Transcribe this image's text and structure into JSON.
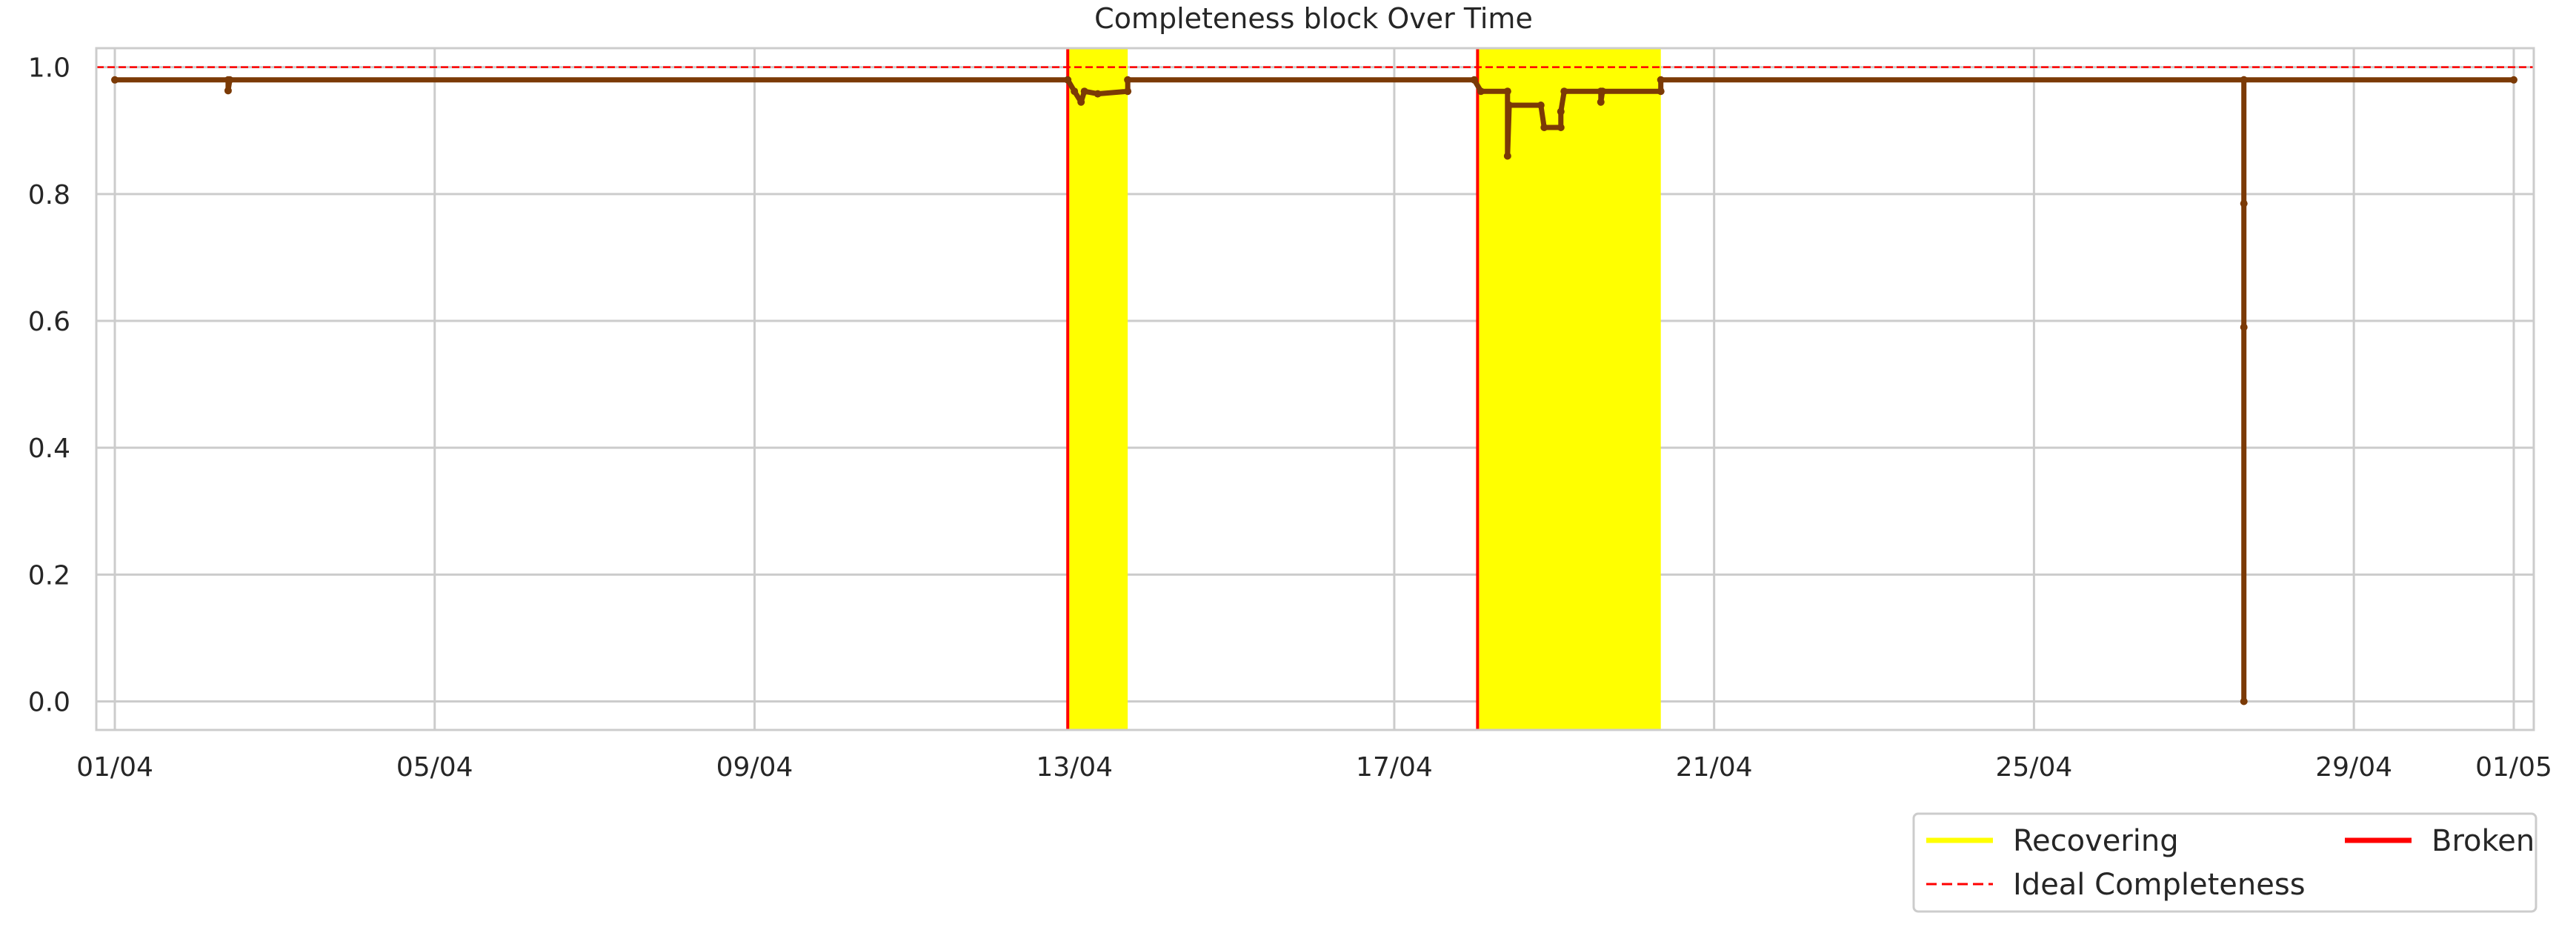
{
  "chart_data": {
    "type": "line",
    "title": "Completeness block Over Time",
    "xlabel": "",
    "ylabel": "",
    "x_range": [
      "2025-04-01",
      "2025-05-01"
    ],
    "ylim": [
      -0.045,
      1.03
    ],
    "x_ticks": [
      {
        "date": "2025-04-01",
        "label": "01/04"
      },
      {
        "date": "2025-04-05",
        "label": "05/04"
      },
      {
        "date": "2025-04-09",
        "label": "09/04"
      },
      {
        "date": "2025-04-13",
        "label": "13/04"
      },
      {
        "date": "2025-04-17",
        "label": "17/04"
      },
      {
        "date": "2025-04-21",
        "label": "21/04"
      },
      {
        "date": "2025-04-25",
        "label": "25/04"
      },
      {
        "date": "2025-04-29",
        "label": "29/04"
      },
      {
        "date": "2025-05-01",
        "label": "01/05"
      }
    ],
    "y_ticks": [
      {
        "value": 0.0,
        "label": "0.0"
      },
      {
        "value": 0.2,
        "label": "0.2"
      },
      {
        "value": 0.4,
        "label": "0.4"
      },
      {
        "value": 0.6,
        "label": "0.6"
      },
      {
        "value": 0.8,
        "label": "0.8"
      },
      {
        "value": 1.0,
        "label": "1.0"
      }
    ],
    "grid": true,
    "legend_placement": "lower-right, below plot",
    "ideal_completeness": 1.0,
    "recovering_spans": [
      {
        "start": "2025-04-12 22:00",
        "end": "2025-04-13 16:00"
      },
      {
        "start": "2025-04-18 01:00",
        "end": "2025-04-20 08:00"
      }
    ],
    "broken_events": [
      "2025-04-12 22:00",
      "2025-04-18 01:00"
    ],
    "series": [
      {
        "points": [
          [
            "2025-04-01 00:00",
            0.98
          ],
          [
            "2025-04-02 10:00",
            0.98
          ],
          [
            "2025-04-02 10:00",
            0.963
          ],
          [
            "2025-04-02 10:30",
            0.98
          ],
          [
            "2025-04-12 22:00",
            0.98
          ],
          [
            "2025-04-13 00:00",
            0.962
          ],
          [
            "2025-04-13 02:00",
            0.945
          ],
          [
            "2025-04-13 03:00",
            0.962
          ],
          [
            "2025-04-13 07:00",
            0.958
          ],
          [
            "2025-04-13 16:00",
            0.962
          ],
          [
            "2025-04-13 16:00",
            0.98
          ],
          [
            "2025-04-18 00:00",
            0.98
          ],
          [
            "2025-04-18 02:00",
            0.962
          ],
          [
            "2025-04-18 10:00",
            0.962
          ],
          [
            "2025-04-18 10:00",
            0.86
          ],
          [
            "2025-04-18 10:30",
            0.94
          ],
          [
            "2025-04-18 20:00",
            0.94
          ],
          [
            "2025-04-18 21:00",
            0.905
          ],
          [
            "2025-04-19 02:00",
            0.905
          ],
          [
            "2025-04-19 02:00",
            0.93
          ],
          [
            "2025-04-19 03:00",
            0.962
          ],
          [
            "2025-04-19 14:00",
            0.962
          ],
          [
            "2025-04-19 14:00",
            0.945
          ],
          [
            "2025-04-19 14:30",
            0.962
          ],
          [
            "2025-04-20 08:00",
            0.962
          ],
          [
            "2025-04-20 08:00",
            0.98
          ],
          [
            "2025-04-27 15:00",
            0.98
          ],
          [
            "2025-04-27 15:00",
            0.785
          ],
          [
            "2025-04-27 15:00",
            0.59
          ],
          [
            "2025-04-27 15:00",
            0.0
          ],
          [
            "2025-04-27 15:00",
            0.98
          ],
          [
            "2025-05-01 00:00",
            0.98
          ]
        ],
        "color": "#7b3a06"
      }
    ],
    "legend": [
      {
        "label": "Recovering",
        "color": "#ffff00",
        "style": "solid"
      },
      {
        "label": "Broken",
        "color": "#ff0000",
        "style": "solid"
      },
      {
        "label": "Ideal Completeness",
        "color": "#ff0000",
        "style": "dashed"
      }
    ]
  }
}
